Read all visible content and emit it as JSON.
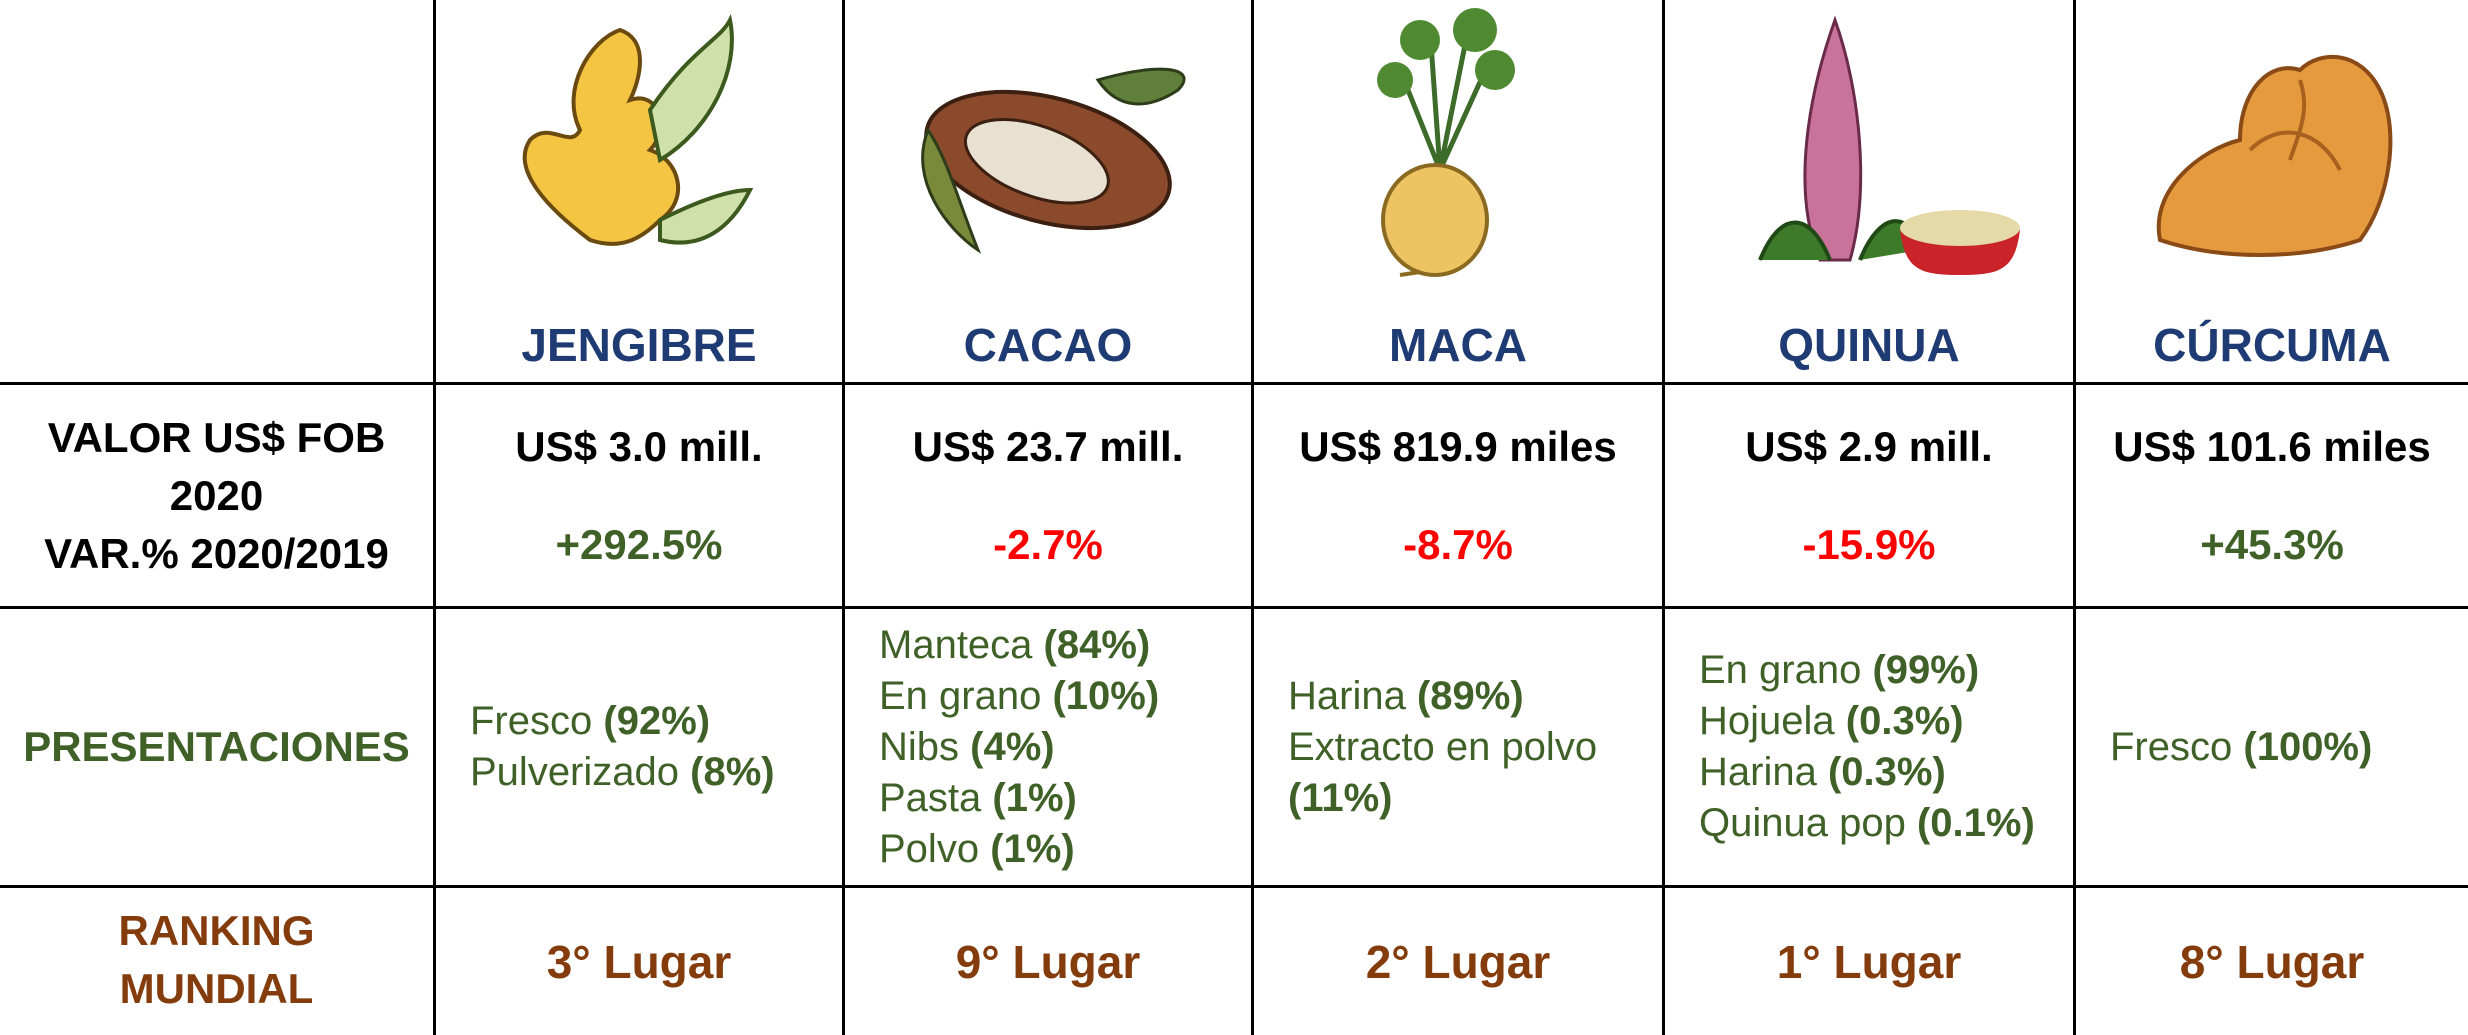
{
  "row_labels": {
    "valor": "VALOR US$ FOB 2020",
    "var": "VAR.% 2020/2019",
    "presentaciones": "PRESENTACIONES",
    "ranking": "RANKING MUNDIAL"
  },
  "products": [
    {
      "name": "JENGIBRE",
      "valor": "US$ 3.0 mill.",
      "var": "+292.5%",
      "presentaciones": [
        {
          "item": "Fresco",
          "share": "(92%)"
        },
        {
          "item": "Pulverizado",
          "share": "(8%)"
        }
      ],
      "ranking": "3° Lugar"
    },
    {
      "name": "CACAO",
      "valor": "US$ 23.7 mill.",
      "var": "-2.7%",
      "presentaciones": [
        {
          "item": "Manteca",
          "share": "(84%)"
        },
        {
          "item": "En grano",
          "share": "(10%)"
        },
        {
          "item": "Nibs",
          "share": "(4%)"
        },
        {
          "item": "Pasta",
          "share": "(1%)"
        },
        {
          "item": "Polvo",
          "share": "(1%)"
        }
      ],
      "ranking": "9° Lugar"
    },
    {
      "name": "MACA",
      "valor": "US$ 819.9 miles",
      "var": "-8.7%",
      "presentaciones": [
        {
          "item": "Harina",
          "share": "(89%)"
        },
        {
          "item": "Extracto en polvo",
          "share": "(11%)"
        }
      ],
      "ranking": "2° Lugar"
    },
    {
      "name": "QUINUA",
      "valor": "US$ 2.9 mill.",
      "var": "-15.9%",
      "presentaciones": [
        {
          "item": "En grano",
          "share": "(99%)"
        },
        {
          "item": "Hojuela",
          "share": "(0.3%)"
        },
        {
          "item": "Harina",
          "share": "(0.3%)"
        },
        {
          "item": "Quinua pop",
          "share": "(0.1%)"
        }
      ],
      "ranking": "1° Lugar"
    },
    {
      "name": "CÚRCUMA",
      "valor": "US$ 101.6 miles",
      "var": "+45.3%",
      "presentaciones": [
        {
          "item": "Fresco",
          "share": "(100%)"
        }
      ],
      "ranking": "8° Lugar"
    }
  ]
}
